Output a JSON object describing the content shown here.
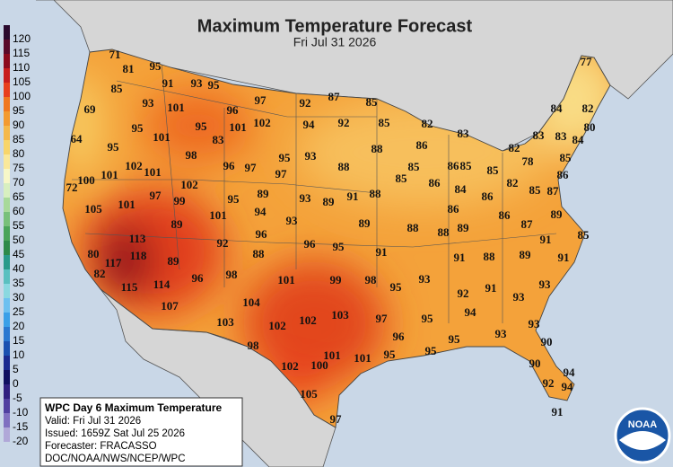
{
  "header": {
    "title": "Maximum Temperature Forecast",
    "subtitle": "Fri Jul 31 2026"
  },
  "legend": {
    "levels": [
      120,
      115,
      110,
      105,
      100,
      95,
      90,
      85,
      80,
      75,
      70,
      65,
      60,
      55,
      50,
      45,
      40,
      35,
      30,
      25,
      20,
      15,
      10,
      5,
      0,
      -5,
      -10,
      -15,
      -20
    ],
    "colors": [
      "#2a0a2e",
      "#5a0a2a",
      "#8b0a1e",
      "#c81e1e",
      "#e8401e",
      "#f07820",
      "#f39a30",
      "#f5b84a",
      "#f8d56a",
      "#fae89a",
      "#f7f7c8",
      "#d8efc0",
      "#a8d99a",
      "#78c07a",
      "#4aa45a",
      "#2e8a4a",
      "#2a9a8a",
      "#5ac0c0",
      "#8ad8e0",
      "#6cc0f0",
      "#3aa0e8",
      "#2a78d0",
      "#1a50b0",
      "#1a2a90",
      "#101060",
      "#302080",
      "#5040a0",
      "#8070c0",
      "#b0a8d8"
    ]
  },
  "info": {
    "title": "WPC Day 6 Maximum Temperature",
    "valid": "Valid: Fri Jul 31 2026",
    "issued": "Issued: 1659Z Sat Jul 25 2026",
    "forecaster": "Forecaster: FRACASSO",
    "source": "DOC/NOAA/NWS/NCEP/WPC"
  },
  "logo": "NOAA",
  "temperatures": [
    71,
    81,
    95,
    91,
    93,
    95,
    85,
    93,
    101,
    97,
    92,
    87,
    85,
    69,
    95,
    101,
    95,
    96,
    101,
    102,
    94,
    92,
    85,
    82,
    83,
    64,
    83,
    88,
    86,
    85,
    86,
    85,
    85,
    83,
    83,
    84,
    82,
    80,
    84,
    85,
    77,
    95,
    102,
    101,
    98,
    96,
    97,
    95,
    93,
    88,
    82,
    78,
    72,
    100,
    101,
    102,
    97,
    99,
    95,
    89,
    97,
    93,
    89,
    91,
    88,
    85,
    86,
    84,
    86,
    82,
    85,
    86,
    87,
    89,
    105,
    101,
    101,
    94,
    93,
    89,
    88,
    88,
    89,
    86,
    86,
    87,
    89,
    92,
    96,
    96,
    95,
    91,
    91,
    85,
    80,
    113,
    117,
    118,
    89,
    88,
    91,
    88,
    89,
    91,
    82,
    115,
    114,
    96,
    98,
    101,
    99,
    98,
    95,
    93,
    92,
    91,
    93,
    93,
    107,
    104,
    95,
    94,
    103,
    102,
    102,
    103,
    97,
    93,
    93,
    96,
    95,
    98,
    90,
    101,
    101,
    95,
    95,
    102,
    100,
    90,
    94,
    92,
    94,
    105,
    97,
    91
  ]
}
